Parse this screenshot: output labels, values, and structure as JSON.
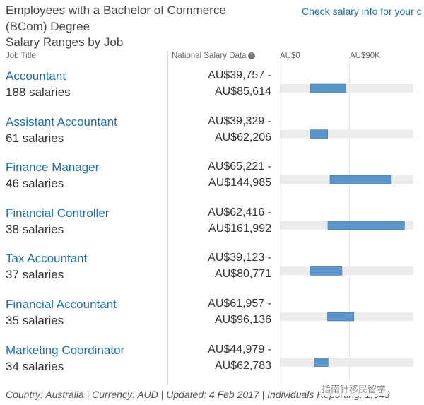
{
  "header": {
    "title_line1": "Employees with a Bachelor of Commerce",
    "title_line2": "(BCom) Degree",
    "title_line3": "Salary Ranges by Job",
    "check_link": "Check salary info for your c"
  },
  "columns": {
    "job": "Job Title",
    "data": "National Salary Data",
    "info_glyph": "i"
  },
  "footer": "Country: Australia | Currency: AUD | Updated: 4 Feb 2017 | Individuals Reporting: 1,943",
  "watermark": "指南针移民留学",
  "colors": {
    "bar": "#5b95c9",
    "track": "#ececec",
    "link": "#1f6fad"
  },
  "chart_data": {
    "type": "bar",
    "orientation": "horizontal-range",
    "x_ticks": [
      "AU$0",
      "AU$90K"
    ],
    "xlim": [
      0,
      180000
    ],
    "grid": false,
    "legend": "none",
    "rows": [
      {
        "job": "Accountant",
        "count_label": "188 salaries",
        "low_label": "AU$39,757 -",
        "high_label": "AU$85,614",
        "low": 39757,
        "high": 85614
      },
      {
        "job": "Assistant Accountant",
        "count_label": "61 salaries",
        "low_label": "AU$39,329 -",
        "high_label": "AU$62,206",
        "low": 39329,
        "high": 62206
      },
      {
        "job": "Finance Manager",
        "count_label": "46 salaries",
        "low_label": "AU$65,221 -",
        "high_label": "AU$144,985",
        "low": 65221,
        "high": 144985
      },
      {
        "job": "Financial Controller",
        "count_label": "38 salaries",
        "low_label": "AU$62,416 -",
        "high_label": "AU$161,992",
        "low": 62416,
        "high": 161992
      },
      {
        "job": "Tax Accountant",
        "count_label": "37 salaries",
        "low_label": "AU$39,123 -",
        "high_label": "AU$80,771",
        "low": 39123,
        "high": 80771
      },
      {
        "job": "Financial Accountant",
        "count_label": "35 salaries",
        "low_label": "AU$61,957 -",
        "high_label": "AU$96,136",
        "low": 61957,
        "high": 96136
      },
      {
        "job": "Marketing Coordinator",
        "count_label": "34 salaries",
        "low_label": "AU$44,979 -",
        "high_label": "AU$62,783",
        "low": 44979,
        "high": 62783
      }
    ]
  }
}
